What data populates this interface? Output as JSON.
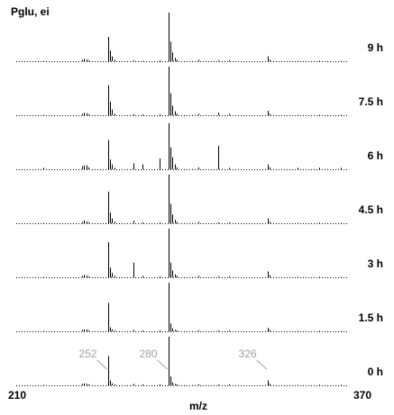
{
  "chart_data": {
    "type": "spectrum",
    "title": "Pglu, ei",
    "xlabel": "m/z",
    "xlim": [
      210,
      370
    ],
    "xticks": [
      210,
      370
    ],
    "ylim": [
      0,
      100
    ],
    "color": "#000000",
    "x": [
      222,
      240,
      241,
      242,
      243,
      252,
      253,
      254,
      255,
      264,
      268,
      276,
      280,
      281,
      282,
      283,
      284,
      294,
      303,
      308,
      326,
      327,
      340,
      350,
      360
    ],
    "series": [
      {
        "name": "9 h",
        "values": [
          1,
          3,
          5,
          4,
          2,
          50,
          22,
          10,
          3,
          2,
          1,
          2,
          100,
          40,
          18,
          7,
          3,
          3,
          2,
          2,
          10,
          3,
          1,
          1,
          1
        ]
      },
      {
        "name": "7.5 h",
        "values": [
          1,
          3,
          5,
          4,
          2,
          62,
          28,
          12,
          3,
          2,
          2,
          2,
          100,
          45,
          20,
          8,
          3,
          3,
          5,
          3,
          9,
          3,
          1,
          1,
          1
        ]
      },
      {
        "name": "6 h",
        "values": [
          3,
          6,
          8,
          8,
          4,
          60,
          20,
          10,
          3,
          12,
          10,
          22,
          95,
          45,
          25,
          10,
          4,
          4,
          48,
          3,
          10,
          4,
          3,
          3,
          3
        ]
      },
      {
        "name": "4.5 h",
        "values": [
          1,
          3,
          6,
          4,
          2,
          65,
          22,
          10,
          3,
          5,
          2,
          2,
          100,
          40,
          18,
          7,
          3,
          3,
          2,
          2,
          10,
          3,
          1,
          1,
          1
        ]
      },
      {
        "name": "3 h",
        "values": [
          1,
          3,
          5,
          4,
          2,
          72,
          20,
          9,
          3,
          30,
          3,
          2,
          100,
          30,
          14,
          6,
          3,
          3,
          2,
          2,
          12,
          4,
          1,
          1,
          1
        ]
      },
      {
        "name": "1.5 h",
        "values": [
          1,
          3,
          4,
          4,
          2,
          58,
          8,
          4,
          2,
          3,
          2,
          2,
          100,
          16,
          6,
          3,
          2,
          2,
          2,
          2,
          7,
          3,
          1,
          1,
          1
        ]
      },
      {
        "name": "0 h",
        "values": [
          1,
          3,
          4,
          3,
          2,
          60,
          10,
          4,
          2,
          3,
          2,
          2,
          100,
          18,
          6,
          3,
          2,
          2,
          2,
          2,
          10,
          3,
          1,
          1,
          1
        ]
      }
    ],
    "peak_labels": [
      252,
      280,
      326
    ],
    "peak_label_color": "#a0a0a0"
  }
}
